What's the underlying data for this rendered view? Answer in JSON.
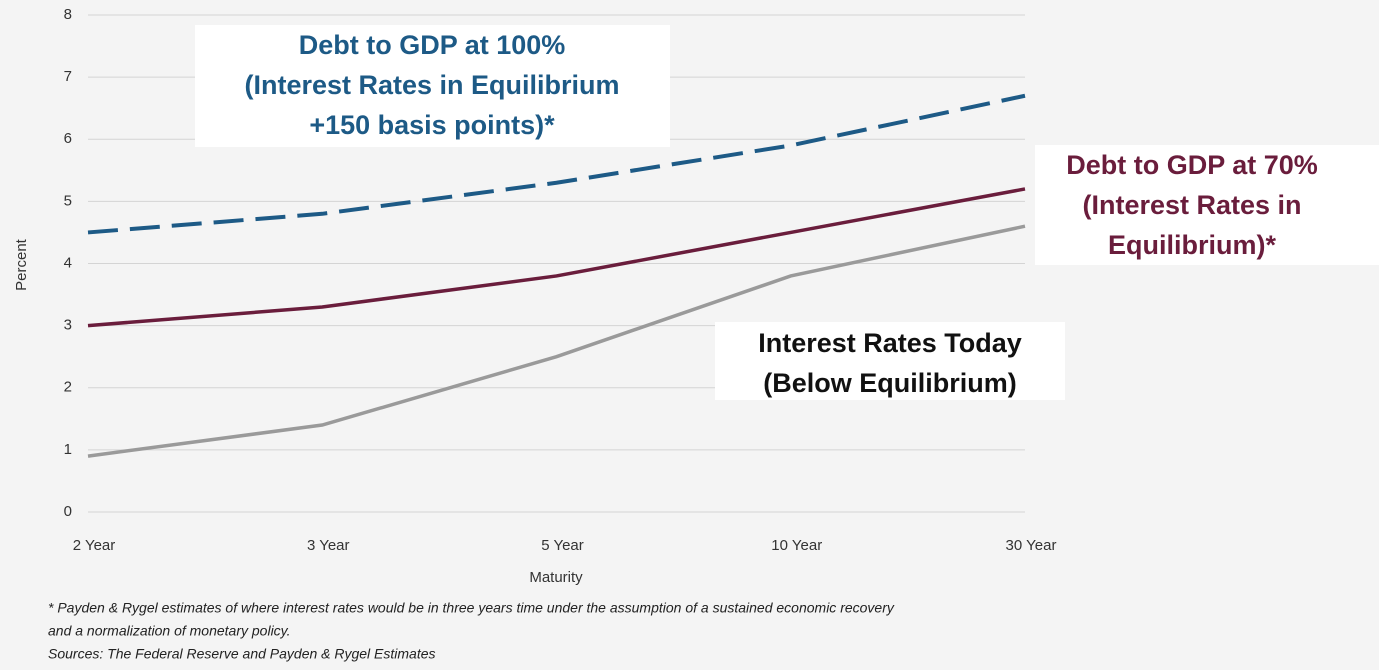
{
  "chart_data": {
    "type": "line",
    "x_label": "Maturity",
    "y_label": "Percent",
    "categories": [
      "2 Year",
      "3 Year",
      "5 Year",
      "10 Year",
      "30 Year"
    ],
    "ylim": [
      0,
      8
    ],
    "yticks": [
      0,
      1,
      2,
      3,
      4,
      5,
      6,
      7,
      8
    ],
    "grid": true,
    "series": [
      {
        "name": [
          "Debt to GDP at 100%",
          "(Interest Rates in Equilibrium",
          "+150 basis points)*"
        ],
        "color": "#1d5a86",
        "dashed": true,
        "values": [
          4.5,
          4.8,
          5.3,
          5.9,
          6.7
        ]
      },
      {
        "name": [
          "Debt to GDP at 70%",
          "(Interest Rates in",
          "Equilibrium)*"
        ],
        "color": "#6a1d3c",
        "dashed": false,
        "values": [
          3.0,
          3.3,
          3.8,
          4.5,
          5.2
        ]
      },
      {
        "name": [
          "Interest Rates Today",
          "(Below Equilibrium)"
        ],
        "color": "#9a9a9a",
        "dashed": false,
        "values": [
          0.9,
          1.4,
          2.5,
          3.8,
          4.6
        ]
      }
    ],
    "notes": [
      "* Payden & Rygel estimates of where interest rates would be in three years time under the assumption of a sustained economic recovery",
      "and a normalization of monetary policy.",
      "Sources: The Federal Reserve and Payden & Rygel Estimates"
    ]
  }
}
